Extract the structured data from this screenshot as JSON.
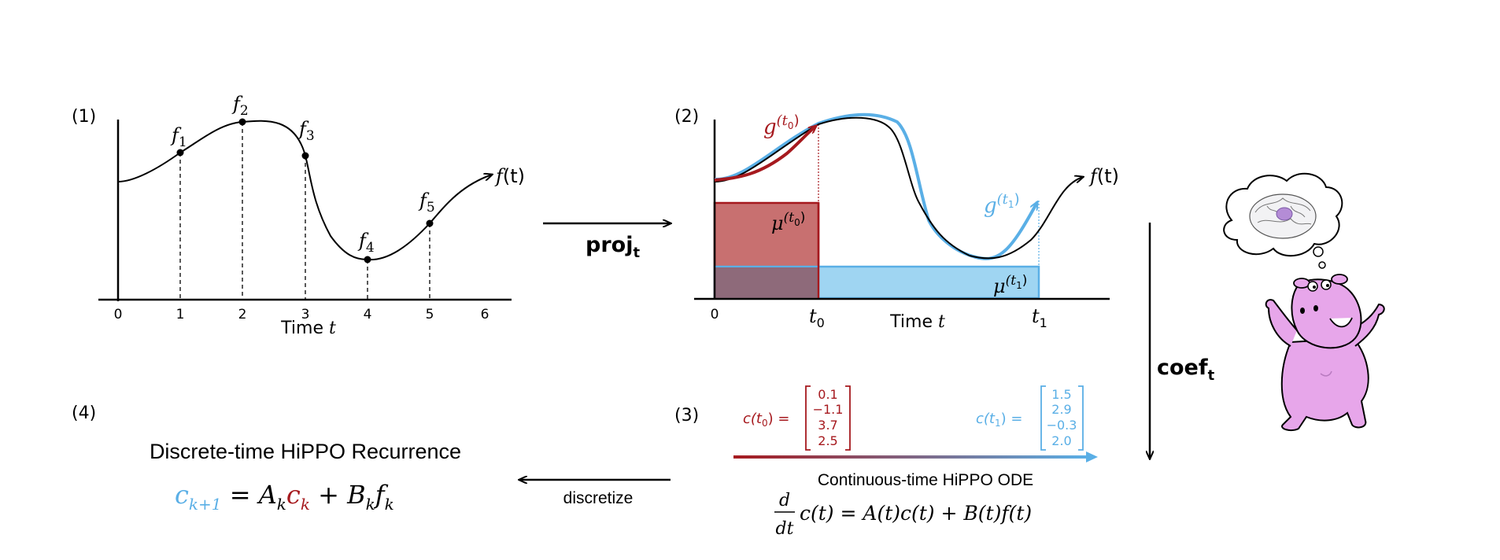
{
  "panel1": {
    "label": "(1)",
    "points": [
      "f",
      "f",
      "f",
      "f",
      "f"
    ],
    "point_subs": [
      "1",
      "2",
      "3",
      "4",
      "5"
    ],
    "ticks": [
      "0",
      "1",
      "2",
      "3",
      "4",
      "5",
      "6"
    ],
    "xlabel_text": "Time ",
    "xlabel_var": "t",
    "curve_label_f": "f",
    "curve_label_t": "(t)"
  },
  "arrow_proj": {
    "label": "proj",
    "sub": "t"
  },
  "panel2": {
    "label": "(2)",
    "g_t0": "g",
    "g_t0_sup": "(t",
    "g_t0_sup_sub": "0",
    "g_t0_sup_close": ")",
    "g_t1": "g",
    "g_t1_sup": "(t",
    "g_t1_sup_sub": "1",
    "g_t1_sup_close": ")",
    "mu_t0": "μ",
    "mu_t0_sup": "(t",
    "mu_t0_sup_sub": "0",
    "mu_t0_sup_close": ")",
    "mu_t1": "μ",
    "mu_t1_sup": "(t",
    "mu_t1_sup_sub": "1",
    "mu_t1_sup_close": ")",
    "tick_0": "0",
    "t0": "t",
    "t0_sub": "0",
    "t1": "t",
    "t1_sub": "1",
    "xlabel_text": "Time ",
    "xlabel_var": "t",
    "curve_label_f": "f",
    "curve_label_t": "(t)"
  },
  "arrow_coef": {
    "label": "coef",
    "sub": "t"
  },
  "panel3": {
    "label": "(3)",
    "c_t0_label": "c(t",
    "c_t0_sub": "0",
    "c_t0_close": ") =",
    "c_t0_values": [
      "0.1",
      "−1.1",
      "3.7",
      "2.5"
    ],
    "c_t1_label": "c(t",
    "c_t1_sub": "1",
    "c_t1_close": ") =",
    "c_t1_values": [
      "1.5",
      "2.9",
      "−0.3",
      "2.0"
    ],
    "title": "Continuous-time HiPPO ODE",
    "ode_num": "d",
    "ode_den": "dt",
    "ode_rhs": "c(t) = A(t)c(t) + B(t)f(t)"
  },
  "arrow_discretize": {
    "label": "discretize"
  },
  "panel4": {
    "label": "(4)",
    "title": "Discrete-time HiPPO Recurrence",
    "c_next": "c",
    "c_next_sub": "k+1",
    "eq": " = ",
    "A": "A",
    "A_sub": "k",
    "c_k": "c",
    "c_k_sub": "k",
    "plus": " + ",
    "B": "B",
    "B_sub": "k",
    "f": "f",
    "f_sub": "k"
  },
  "colors": {
    "red": "#a6191e",
    "blue": "#5aafe6",
    "red_fill": "#c87070",
    "blue_fill": "#9fd5f2",
    "overlap_fill": "#8e6a7a",
    "hippo": "#e7a6ea",
    "hippo_dark": "#b97bc0"
  }
}
